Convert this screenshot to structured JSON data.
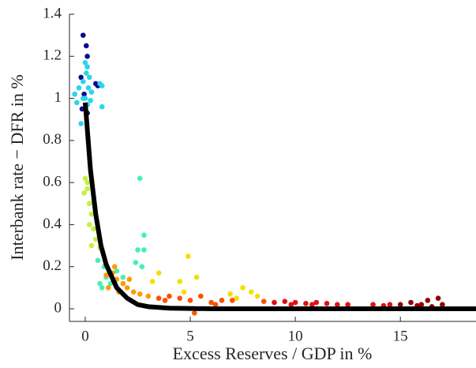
{
  "chart_data": {
    "type": "scatter",
    "x_label": "Excess Reserves / GDP in %",
    "y_label": "Interbank rate − DFR in %",
    "xlim": [
      -0.75,
      18.6
    ],
    "ylim": [
      -0.06,
      1.4
    ],
    "xticks": [
      0,
      5,
      10,
      15
    ],
    "yticks": [
      0,
      0.2,
      0.4,
      0.6,
      0.8,
      1,
      1.2,
      1.4
    ],
    "series": [
      {
        "color": "#0a0a8c",
        "x": [
          -0.1,
          0.05,
          0.1,
          -0.2,
          -0.05,
          0.1,
          -0.15,
          0.5,
          0.6
        ],
        "values": [
          1.3,
          1.25,
          1.2,
          1.1,
          1.02,
          0.93,
          0.95,
          1.07,
          1.06
        ]
      },
      {
        "color": "#2ad4ee",
        "x": [
          0,
          0.1,
          0.05,
          -0.1,
          0.2,
          0.15,
          -0.3,
          -0.5,
          -0.4,
          0,
          0.3,
          -0.2,
          0.7,
          0.8,
          0.8,
          0.1,
          -0.1,
          0.25
        ],
        "values": [
          1.17,
          1.15,
          1.12,
          1.08,
          1.1,
          1.05,
          1.05,
          1.02,
          0.98,
          1.0,
          1.03,
          0.88,
          1.07,
          1.06,
          0.96,
          0.97,
          1.0,
          0.99
        ]
      },
      {
        "color": "#45f0b4",
        "x": [
          2.6,
          2.8,
          2.5,
          2.8,
          2.4,
          2.7,
          0.6,
          1.0,
          0.8,
          1.2,
          1.5,
          0.9,
          1.8,
          0.7
        ],
        "values": [
          0.62,
          0.35,
          0.28,
          0.28,
          0.22,
          0.2,
          0.23,
          0.15,
          0.1,
          0.12,
          0.18,
          0.2,
          0.15,
          0.12
        ]
      },
      {
        "color": "#c4f040",
        "x": [
          0,
          0.1,
          -0.05,
          0.2,
          0.3,
          0.4,
          0.5,
          0.3,
          0.7,
          0.2,
          0.1
        ],
        "values": [
          0.62,
          0.6,
          0.55,
          0.5,
          0.45,
          0.38,
          0.33,
          0.3,
          0.29,
          0.4,
          0.57
        ]
      },
      {
        "color": "#f2e000",
        "x": [
          4.9,
          3.5,
          3.2,
          4.5,
          4.7,
          7.5,
          7.9,
          8.2,
          7.2,
          6.9,
          5.3
        ],
        "values": [
          0.25,
          0.17,
          0.13,
          0.13,
          0.08,
          0.1,
          0.08,
          0.06,
          0.05,
          0.07,
          0.15
        ]
      },
      {
        "color": "#ff9a00",
        "x": [
          1.0,
          1.3,
          1.5,
          1.8,
          2.0,
          1.1,
          2.3,
          2.6,
          3.0,
          1.6,
          1.4,
          2.1
        ],
        "values": [
          0.16,
          0.17,
          0.14,
          0.12,
          0.1,
          0.1,
          0.08,
          0.07,
          0.06,
          0.08,
          0.2,
          0.14
        ]
      },
      {
        "color": "#ff5000",
        "x": [
          3.5,
          4.0,
          4.5,
          5.0,
          5.5,
          6.0,
          6.5,
          7.0,
          5.2,
          6.2,
          3.8,
          8.5
        ],
        "values": [
          0.05,
          0.06,
          0.05,
          0.04,
          0.06,
          0.03,
          0.04,
          0.04,
          -0.02,
          0.02,
          0.04,
          0.035
        ]
      },
      {
        "color": "#e01010",
        "x": [
          9,
          9.5,
          10,
          10.5,
          11,
          11.5,
          12,
          12.5,
          13.7,
          14.2,
          14.5,
          10.8,
          9.8
        ],
        "values": [
          0.03,
          0.035,
          0.03,
          0.025,
          0.03,
          0.025,
          0.02,
          0.02,
          0.02,
          0.015,
          0.02,
          0.02,
          0.02
        ]
      },
      {
        "color": "#960000",
        "x": [
          15,
          15.5,
          16,
          16.3,
          16.8,
          17,
          16.5,
          15.8
        ],
        "values": [
          0.02,
          0.03,
          0.02,
          0.04,
          0.05,
          0.02,
          0.01,
          0.015
        ]
      }
    ],
    "fit": {
      "type": "line",
      "color": "#000000",
      "x": [
        0,
        0.25,
        0.5,
        0.75,
        1,
        1.5,
        2,
        2.5,
        3,
        4,
        6,
        18.6
      ],
      "values": [
        0.98,
        0.66,
        0.45,
        0.3,
        0.21,
        0.1,
        0.05,
        0.02,
        0.01,
        0.003,
        0,
        0
      ]
    }
  }
}
